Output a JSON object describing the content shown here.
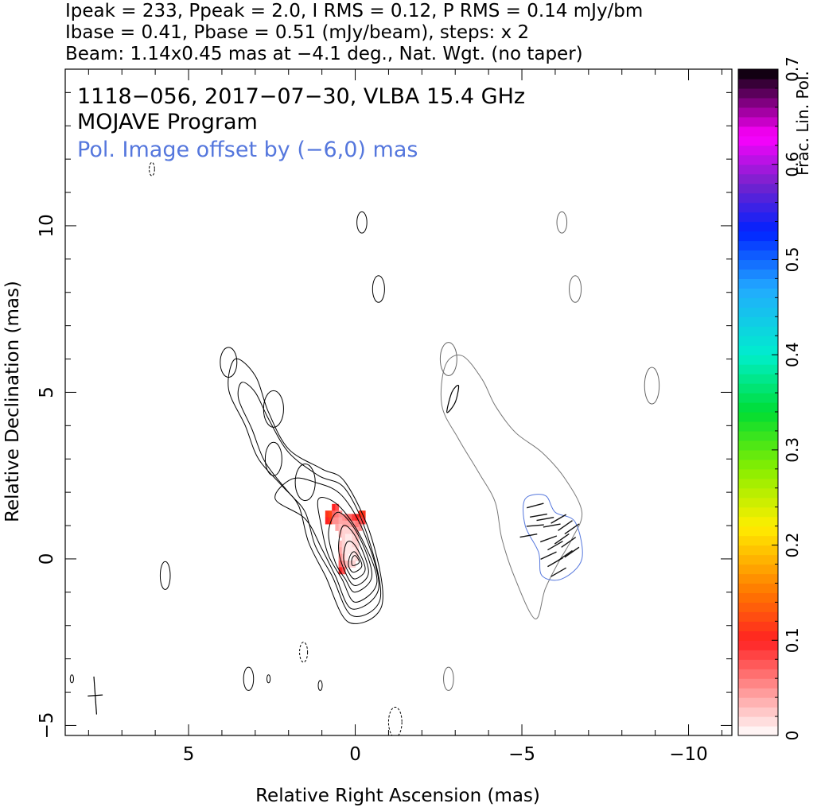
{
  "header": {
    "line1": "Ipeak = 233, Ppeak = 2.0, I RMS = 0.12, P RMS = 0.14 mJy/bm",
    "line2": "Ibase = 0.41, Pbase = 0.51 (mJy/beam), steps: x 2",
    "line3": "Beam: 1.14x0.45 mas at −4.1 deg., Nat. Wgt. (no taper)"
  },
  "annotations": {
    "source": "1118−056, 2017−07−30, VLBA 15.4 GHz",
    "program": "MOJAVE Program",
    "offset_note": "Pol. Image offset by (−6,0) mas",
    "offset_color": "#5577dd"
  },
  "chart_data": {
    "type": "contour",
    "xlabel": "Relative Right Ascension (mas)",
    "ylabel": "Relative Declination (mas)",
    "xlim": [
      8.7,
      -11.3
    ],
    "ylim": [
      -5.3,
      14.7
    ],
    "x_ticks": [
      5,
      0,
      -5,
      -10
    ],
    "x_tick_labels": [
      "5",
      "0",
      "−5",
      "−10"
    ],
    "y_ticks": [
      -5,
      0,
      5,
      10
    ],
    "y_tick_labels": [
      "−5",
      "0",
      "5",
      "10"
    ],
    "pol_offset_mas": [
      -6,
      0
    ],
    "colorbar": {
      "label": "Frac. Lin. Pol.",
      "range": [
        0,
        0.7
      ],
      "ticks": [
        0,
        0.1,
        0.2,
        0.3,
        0.4,
        0.5,
        0.6,
        0.7
      ],
      "tick_labels": [
        "0",
        "0.1",
        "0.2",
        "0.3",
        "0.4",
        "0.5",
        "0.6",
        "0.7"
      ]
    },
    "beam": {
      "major_mas": 1.14,
      "minor_mas": 0.45,
      "pa_deg": -4.1,
      "center": [
        7.8,
        -4.1
      ]
    },
    "stats": {
      "Ipeak": 233,
      "Ppeak": 2.0,
      "I_RMS": 0.12,
      "P_RMS": 0.14,
      "Ibase": 0.41,
      "Pbase": 0.51
    },
    "core": [
      0,
      0
    ],
    "jet_ridge": [
      [
        0,
        0
      ],
      [
        0.35,
        0.9
      ],
      [
        0.9,
        1.7
      ],
      [
        1.6,
        2.4
      ],
      [
        2.5,
        3.3
      ],
      [
        3.0,
        4.4
      ],
      [
        3.3,
        5.3
      ]
    ],
    "i_contours": [
      {
        "points": [
          [
            -0.8,
            -1.4
          ],
          [
            -0.5,
            0.6
          ],
          [
            0.3,
            2.3
          ],
          [
            1.0,
            2.7
          ],
          [
            2.0,
            3.3
          ],
          [
            2.6,
            4.4
          ],
          [
            3.0,
            5.5
          ],
          [
            3.6,
            6.0
          ],
          [
            3.8,
            5.1
          ],
          [
            3.3,
            4.0
          ],
          [
            2.9,
            3.0
          ],
          [
            2.2,
            2.2
          ],
          [
            1.7,
            1.6
          ],
          [
            1.4,
            0.5
          ],
          [
            0.9,
            -0.5
          ],
          [
            0.2,
            -1.9
          ]
        ]
      },
      {
        "points": [
          [
            -0.75,
            -1.2
          ],
          [
            -0.4,
            0.6
          ],
          [
            0.3,
            2.1
          ],
          [
            1.1,
            2.5
          ],
          [
            2.0,
            3.2
          ],
          [
            2.6,
            4.2
          ],
          [
            3.0,
            5.0
          ],
          [
            3.4,
            5.3
          ],
          [
            3.5,
            4.8
          ],
          [
            3.1,
            3.9
          ],
          [
            2.7,
            2.9
          ],
          [
            2.0,
            2.0
          ],
          [
            1.5,
            1.4
          ],
          [
            1.2,
            0.4
          ],
          [
            0.7,
            -0.5
          ],
          [
            0.1,
            -1.7
          ]
        ]
      },
      {
        "points": [
          [
            -0.7,
            -0.9
          ],
          [
            -0.3,
            0.7
          ],
          [
            0.4,
            1.9
          ],
          [
            1.2,
            2.3
          ],
          [
            1.9,
            2.4
          ],
          [
            2.4,
            1.8
          ],
          [
            1.5,
            1.2
          ],
          [
            1.0,
            0.3
          ],
          [
            0.6,
            -0.5
          ],
          [
            0.1,
            -1.5
          ]
        ]
      },
      {
        "points": [
          [
            -0.65,
            -0.7
          ],
          [
            -0.2,
            0.6
          ],
          [
            0.5,
            1.6
          ],
          [
            1.1,
            1.8
          ],
          [
            1.0,
            0.9
          ],
          [
            0.8,
            0.1
          ],
          [
            0.4,
            -0.6
          ],
          [
            0.0,
            -1.3
          ]
        ]
      },
      {
        "points": [
          [
            -0.5,
            -0.5
          ],
          [
            -0.1,
            0.7
          ],
          [
            0.5,
            1.4
          ],
          [
            0.8,
            0.8
          ],
          [
            0.6,
            -0.1
          ],
          [
            0.3,
            -0.6
          ],
          [
            0.0,
            -1.0
          ]
        ]
      },
      {
        "points": [
          [
            -0.4,
            -0.4
          ],
          [
            -0.05,
            0.6
          ],
          [
            0.35,
            1.0
          ],
          [
            0.5,
            0.3
          ],
          [
            0.3,
            -0.4
          ],
          [
            0.0,
            -0.8
          ]
        ]
      },
      {
        "points": [
          [
            -0.3,
            -0.3
          ],
          [
            0.0,
            0.4
          ],
          [
            0.25,
            0.5
          ],
          [
            0.35,
            0.0
          ],
          [
            0.2,
            -0.4
          ],
          [
            0.0,
            -0.6
          ]
        ]
      },
      {
        "points": [
          [
            -0.2,
            -0.2
          ],
          [
            0.0,
            0.2
          ],
          [
            0.15,
            0.1
          ],
          [
            0.2,
            -0.2
          ],
          [
            0.05,
            -0.4
          ]
        ]
      },
      {
        "points": [
          [
            -0.12,
            -0.1
          ],
          [
            0.0,
            0.1
          ],
          [
            0.1,
            0.0
          ],
          [
            0.08,
            -0.2
          ]
        ]
      }
    ],
    "i_blobs": [
      {
        "center": [
          3.8,
          5.9
        ],
        "rx": 0.25,
        "ry": 0.45
      },
      {
        "center": [
          2.45,
          4.5
        ],
        "rx": 0.3,
        "ry": 0.55
      },
      {
        "center": [
          2.45,
          3.0
        ],
        "rx": 0.25,
        "ry": 0.5
      },
      {
        "center": [
          1.5,
          2.3
        ],
        "rx": 0.3,
        "ry": 0.55
      },
      {
        "center": [
          -0.2,
          10.1
        ],
        "rx": 0.15,
        "ry": 0.32
      },
      {
        "center": [
          -0.7,
          8.1
        ],
        "rx": 0.18,
        "ry": 0.4
      },
      {
        "center": [
          5.7,
          -0.5
        ],
        "rx": 0.15,
        "ry": 0.42
      },
      {
        "center": [
          3.2,
          -3.6
        ],
        "rx": 0.15,
        "ry": 0.35
      },
      {
        "center": [
          6.1,
          11.7
        ],
        "rx": 0.08,
        "ry": 0.2,
        "dashed": true
      },
      {
        "center": [
          1.55,
          -2.8
        ],
        "rx": 0.12,
        "ry": 0.3,
        "dashed": true
      },
      {
        "center": [
          -1.2,
          -4.9
        ],
        "rx": 0.2,
        "ry": 0.45,
        "dashed": true
      },
      {
        "center": [
          2.6,
          -3.6
        ],
        "rx": 0.05,
        "ry": 0.12
      },
      {
        "center": [
          1.05,
          -3.8
        ],
        "rx": 0.06,
        "ry": 0.15
      },
      {
        "center": [
          8.5,
          -3.6
        ],
        "rx": 0.05,
        "ry": 0.12
      },
      {
        "center": [
          -2.8,
          6.0
        ],
        "rx": 0.25,
        "ry": 0.5,
        "pol_panel": true
      },
      {
        "center": [
          -6.2,
          10.1
        ],
        "rx": 0.15,
        "ry": 0.32,
        "pol_panel": true
      },
      {
        "center": [
          -6.6,
          8.1
        ],
        "rx": 0.18,
        "ry": 0.4,
        "pol_panel": true
      },
      {
        "center": [
          -8.9,
          5.2
        ],
        "rx": 0.22,
        "ry": 0.55,
        "pol_panel": true
      },
      {
        "center": [
          -2.8,
          -3.6
        ],
        "rx": 0.15,
        "ry": 0.35,
        "pol_panel": true
      }
    ],
    "p_outer_contour": [
      [
        -5.4,
        -1.8
      ],
      [
        -5.7,
        -0.9
      ],
      [
        -6.1,
        -0.1
      ],
      [
        -6.5,
        0.6
      ],
      [
        -6.8,
        1.4
      ],
      [
        -6.3,
        2.4
      ],
      [
        -5.6,
        3.2
      ],
      [
        -4.8,
        3.8
      ],
      [
        -4.2,
        4.6
      ],
      [
        -3.8,
        5.4
      ],
      [
        -3.2,
        6.1
      ],
      [
        -2.7,
        5.8
      ],
      [
        -2.6,
        4.6
      ],
      [
        -3.1,
        3.6
      ],
      [
        -3.7,
        2.6
      ],
      [
        -4.2,
        1.7
      ],
      [
        -4.4,
        0.6
      ],
      [
        -4.8,
        -0.6
      ]
    ],
    "p_inner_core": [
      [
        -2.75,
        4.4
      ],
      [
        -2.9,
        5.0
      ],
      [
        -3.1,
        5.2
      ],
      [
        -3.0,
        4.7
      ]
    ],
    "p_emission_region": [
      [
        -5.1,
        1.8
      ],
      [
        -5.7,
        1.9
      ],
      [
        -6.0,
        1.4
      ],
      [
        -6.6,
        1.1
      ],
      [
        -6.8,
        0.0
      ],
      [
        -6.2,
        -0.6
      ],
      [
        -5.6,
        -0.5
      ],
      [
        -5.5,
        0.2
      ],
      [
        -5.1,
        1.0
      ]
    ],
    "evpa_vectors": [
      {
        "pos": [
          -5.4,
          1.6
        ],
        "angle_deg": 75
      },
      {
        "pos": [
          -5.5,
          1.3
        ],
        "angle_deg": 80
      },
      {
        "pos": [
          -5.4,
          1.0
        ],
        "angle_deg": 85
      },
      {
        "pos": [
          -5.7,
          1.2
        ],
        "angle_deg": 80
      },
      {
        "pos": [
          -5.9,
          1.0
        ],
        "angle_deg": 80
      },
      {
        "pos": [
          -6.1,
          1.2
        ],
        "angle_deg": 60
      },
      {
        "pos": [
          -6.3,
          1.0
        ],
        "angle_deg": 55
      },
      {
        "pos": [
          -6.5,
          0.9
        ],
        "angle_deg": 55
      },
      {
        "pos": [
          -5.8,
          0.6
        ],
        "angle_deg": 70
      },
      {
        "pos": [
          -6.0,
          0.4
        ],
        "angle_deg": 60
      },
      {
        "pos": [
          -6.2,
          0.6
        ],
        "angle_deg": 55
      },
      {
        "pos": [
          -6.4,
          0.5
        ],
        "angle_deg": 55
      },
      {
        "pos": [
          -5.8,
          0.1
        ],
        "angle_deg": 65
      },
      {
        "pos": [
          -6.0,
          -0.1
        ],
        "angle_deg": 60
      },
      {
        "pos": [
          -6.3,
          0.1
        ],
        "angle_deg": 55
      },
      {
        "pos": [
          -6.5,
          0.2
        ],
        "angle_deg": 55
      },
      {
        "pos": [
          -6.1,
          -0.4
        ],
        "angle_deg": 60
      },
      {
        "pos": [
          -5.2,
          0.7
        ],
        "angle_deg": 80
      }
    ],
    "fracpol_pixels": [
      {
        "x": 0.85,
        "y": 1.35,
        "value": 0.11
      },
      {
        "x": 0.75,
        "y": 1.35,
        "value": 0.12
      },
      {
        "x": 0.85,
        "y": 1.15,
        "value": 0.1
      },
      {
        "x": 0.75,
        "y": 1.15,
        "value": 0.11
      },
      {
        "x": 0.65,
        "y": 1.55,
        "value": 0.1
      },
      {
        "x": 0.55,
        "y": 1.55,
        "value": 0.08
      },
      {
        "x": 0.65,
        "y": 1.35,
        "value": 0.07
      },
      {
        "x": 0.55,
        "y": 1.35,
        "value": 0.06
      },
      {
        "x": 0.45,
        "y": 1.35,
        "value": 0.05
      },
      {
        "x": 0.35,
        "y": 1.25,
        "value": 0.05
      },
      {
        "x": 0.25,
        "y": 1.25,
        "value": 0.06
      },
      {
        "x": 0.15,
        "y": 1.25,
        "value": 0.07
      },
      {
        "x": 0.05,
        "y": 1.25,
        "value": 0.09
      },
      {
        "x": -0.05,
        "y": 1.25,
        "value": 0.1
      },
      {
        "x": -0.15,
        "y": 1.35,
        "value": 0.11
      },
      {
        "x": -0.25,
        "y": 1.35,
        "value": 0.11
      },
      {
        "x": 0.65,
        "y": 1.15,
        "value": 0.05
      },
      {
        "x": 0.55,
        "y": 1.15,
        "value": 0.05
      },
      {
        "x": 0.45,
        "y": 1.15,
        "value": 0.04
      },
      {
        "x": 0.35,
        "y": 1.05,
        "value": 0.04
      },
      {
        "x": 0.25,
        "y": 1.05,
        "value": 0.04
      },
      {
        "x": 0.15,
        "y": 1.05,
        "value": 0.04
      },
      {
        "x": 0.05,
        "y": 1.05,
        "value": 0.05
      },
      {
        "x": -0.05,
        "y": 1.05,
        "value": 0.06
      },
      {
        "x": -0.15,
        "y": 1.15,
        "value": 0.08
      },
      {
        "x": -0.25,
        "y": 1.15,
        "value": 0.09
      },
      {
        "x": 0.55,
        "y": 0.95,
        "value": 0.04
      },
      {
        "x": 0.45,
        "y": 0.95,
        "value": 0.03
      },
      {
        "x": 0.35,
        "y": 0.85,
        "value": 0.02
      },
      {
        "x": 0.25,
        "y": 0.85,
        "value": 0.02
      },
      {
        "x": 0.15,
        "y": 0.85,
        "value": 0.02
      },
      {
        "x": 0.05,
        "y": 0.85,
        "value": 0.03
      },
      {
        "x": -0.05,
        "y": 0.85,
        "value": 0.04
      },
      {
        "x": -0.15,
        "y": 0.95,
        "value": 0.05
      },
      {
        "x": 0.45,
        "y": 0.75,
        "value": 0.03
      },
      {
        "x": 0.35,
        "y": 0.65,
        "value": 0.02
      },
      {
        "x": 0.25,
        "y": 0.65,
        "value": 0.01
      },
      {
        "x": 0.15,
        "y": 0.65,
        "value": 0.01
      },
      {
        "x": 0.05,
        "y": 0.65,
        "value": 0.02
      },
      {
        "x": -0.05,
        "y": 0.65,
        "value": 0.03
      },
      {
        "x": 0.45,
        "y": 0.45,
        "value": 0.03
      },
      {
        "x": 0.35,
        "y": 0.45,
        "value": 0.02
      },
      {
        "x": 0.25,
        "y": 0.45,
        "value": 0.01
      },
      {
        "x": 0.15,
        "y": 0.45,
        "value": 0.01
      },
      {
        "x": 0.05,
        "y": 0.45,
        "value": 0.02
      },
      {
        "x": -0.05,
        "y": 0.45,
        "value": 0.02
      },
      {
        "x": 0.45,
        "y": 0.25,
        "value": 0.04
      },
      {
        "x": 0.35,
        "y": 0.25,
        "value": 0.02
      },
      {
        "x": 0.25,
        "y": 0.25,
        "value": 0.01
      },
      {
        "x": 0.15,
        "y": 0.25,
        "value": 0.01
      },
      {
        "x": 0.05,
        "y": 0.25,
        "value": 0.01
      },
      {
        "x": -0.05,
        "y": 0.25,
        "value": 0.02
      },
      {
        "x": 0.45,
        "y": 0.05,
        "value": 0.05
      },
      {
        "x": 0.35,
        "y": 0.05,
        "value": 0.03
      },
      {
        "x": 0.25,
        "y": 0.05,
        "value": 0.01
      },
      {
        "x": 0.15,
        "y": 0.05,
        "value": 0.0
      },
      {
        "x": 0.05,
        "y": 0.05,
        "value": 0.01
      },
      {
        "x": -0.05,
        "y": 0.05,
        "value": 0.02
      },
      {
        "x": 0.45,
        "y": -0.15,
        "value": 0.07
      },
      {
        "x": 0.35,
        "y": -0.15,
        "value": 0.05
      },
      {
        "x": 0.25,
        "y": -0.15,
        "value": 0.03
      },
      {
        "x": 0.15,
        "y": -0.15,
        "value": 0.02
      },
      {
        "x": 0.05,
        "y": -0.15,
        "value": 0.02
      },
      {
        "x": 0.45,
        "y": -0.35,
        "value": 0.1
      },
      {
        "x": 0.35,
        "y": -0.35,
        "value": 0.08
      }
    ]
  }
}
